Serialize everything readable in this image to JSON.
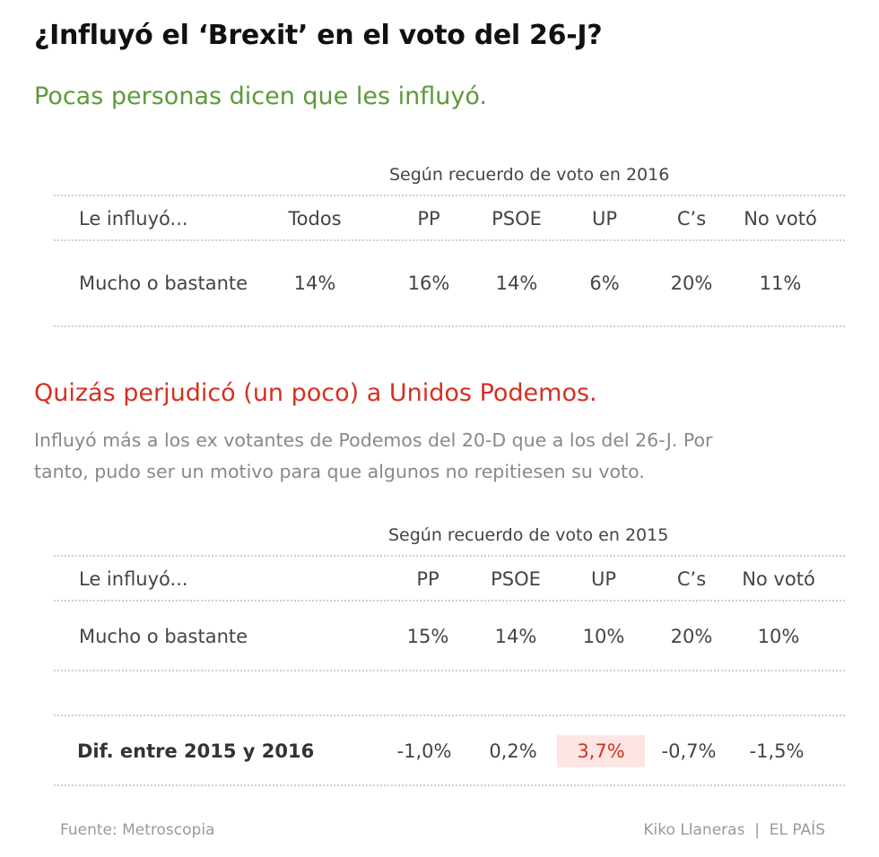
{
  "title": "¿Influyó el ‘Brexit’ en el voto del 26-J?",
  "subtitle1": "Pocas personas dicen que les influyó.",
  "subtitle2": "Quizás perjudicó (un poco) a Unidos Podemos.",
  "description": "Influyó más a los ex votantes de Podemos del 20-D que a los del 26-J. Por tanto, pudo ser un motivo para que algunos no repitiesen su voto.",
  "chart_data": [
    {
      "type": "table",
      "caption": "Según recuerdo de voto en 2016",
      "row_header": "Le influyó...",
      "columns": [
        "Todos",
        "PP",
        "PSOE",
        "UP",
        "C’s",
        "No votó"
      ],
      "rows": [
        {
          "label": "Mucho o bastante",
          "values": [
            "14%",
            "16%",
            "14%",
            "6%",
            "20%",
            "11%"
          ]
        }
      ]
    },
    {
      "type": "table",
      "caption": "Según recuerdo de voto en 2015",
      "row_header": "Le influyó...",
      "columns": [
        "PP",
        "PSOE",
        "UP",
        "C’s",
        "No votó"
      ],
      "rows": [
        {
          "label": "Mucho o bastante",
          "values": [
            "15%",
            "14%",
            "10%",
            "20%",
            "10%"
          ]
        },
        {
          "label": "Dif. entre 2015 y 2016",
          "values": [
            "-1,0%",
            "0,2%",
            "3,7%",
            "-0,7%",
            "-1,5%"
          ],
          "highlight_column": "UP",
          "highlight_color": "#d53020"
        }
      ]
    }
  ],
  "footer": {
    "source": "Fuente: Metroscopia",
    "credit": "Kiko Llaneras  |  EL PAÍS"
  },
  "colors": {
    "green": "#5c9a3a",
    "red": "#d53020",
    "highlight_bg": "#fce6e4"
  }
}
